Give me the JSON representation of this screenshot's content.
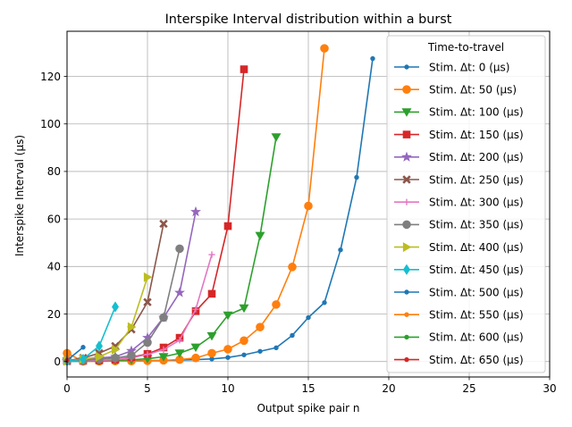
{
  "chart_data": {
    "type": "line",
    "title": "Interspike Interval distribution within a burst",
    "xlabel": "Output spike pair n",
    "ylabel": "Interspike Interval (μs)",
    "xlim": [
      0,
      30
    ],
    "ylim": [
      -6.5,
      139
    ],
    "xticks": [
      0,
      5,
      10,
      15,
      20,
      25,
      30
    ],
    "yticks": [
      0,
      20,
      40,
      60,
      80,
      100,
      120
    ],
    "grid": true,
    "legend": {
      "title": "Time-to-travel",
      "placement": "top-right"
    },
    "series": [
      {
        "name": "Stim. Δt: 0 (μs)",
        "color": "#1f77b4",
        "marker": "dot",
        "x": [
          0,
          1,
          2,
          3,
          4,
          5,
          6,
          7,
          8,
          9,
          10,
          11,
          12,
          13,
          14,
          15,
          16,
          17,
          18,
          19
        ],
        "y": [
          0.1,
          0.1,
          0.2,
          0.2,
          0.3,
          0.4,
          0.5,
          0.6,
          0.8,
          1.1,
          1.7,
          2.8,
          4.3,
          5.8,
          11,
          18.5,
          24.8,
          47,
          77.5,
          127.5
        ]
      },
      {
        "name": "Stim. Δt: 50 (μs)",
        "color": "#ff7f0e",
        "marker": "circle",
        "x": [
          0,
          1,
          2,
          3,
          4,
          5,
          6,
          7,
          8,
          9,
          10,
          11,
          12,
          13,
          14,
          15,
          16
        ],
        "y": [
          3.5,
          0.1,
          0.1,
          0.2,
          0.2,
          0.3,
          0.5,
          0.8,
          1.5,
          3.5,
          5.2,
          8.8,
          14.5,
          24,
          39.8,
          65.5,
          131.8
        ]
      },
      {
        "name": "Stim. Δt: 100 (μs)",
        "color": "#2ca02c",
        "marker": "triangle-down",
        "x": [
          0,
          1,
          2,
          3,
          4,
          5,
          6,
          7,
          8,
          9,
          10,
          11,
          12,
          13
        ],
        "y": [
          0.1,
          0.2,
          0.3,
          0.5,
          0.7,
          1.2,
          2,
          3.5,
          6,
          10.8,
          19.5,
          22.5,
          53,
          94.5
        ]
      },
      {
        "name": "Stim. Δt: 150 (μs)",
        "color": "#d62728",
        "marker": "square",
        "x": [
          0,
          1,
          2,
          3,
          4,
          5,
          6,
          7,
          8,
          9,
          10,
          11
        ],
        "y": [
          0.2,
          0.3,
          0.5,
          0.8,
          1.8,
          3.2,
          5.9,
          10,
          21.2,
          28.5,
          57,
          123
        ]
      },
      {
        "name": "Stim. Δt: 200 (μs)",
        "color": "#9467bd",
        "marker": "star",
        "x": [
          0,
          1,
          2,
          3,
          4,
          5,
          6,
          7,
          8
        ],
        "y": [
          0.2,
          0.5,
          1.5,
          2,
          4.5,
          10,
          18.5,
          29,
          63
        ]
      },
      {
        "name": "Stim. Δt: 250 (μs)",
        "color": "#8c564b",
        "marker": "x",
        "x": [
          0,
          1,
          2,
          3,
          4,
          5,
          6
        ],
        "y": [
          0.3,
          1.5,
          3.5,
          6.5,
          13.5,
          25,
          58
        ]
      },
      {
        "name": "Stim. Δt: 300 (μs)",
        "color": "#e377c2",
        "marker": "plus",
        "x": [
          0,
          1,
          2,
          3,
          4,
          5,
          6,
          7,
          8,
          9
        ],
        "y": [
          0.2,
          0.3,
          0.5,
          0.8,
          1.5,
          3,
          5,
          9,
          22,
          45
        ]
      },
      {
        "name": "Stim. Δt: 350 (μs)",
        "color": "#7f7f7f",
        "marker": "circle",
        "x": [
          0,
          1,
          2,
          3,
          4,
          5,
          6,
          7
        ],
        "y": [
          0.3,
          0.5,
          1,
          1.5,
          2.5,
          8,
          18.5,
          47.5
        ]
      },
      {
        "name": "Stim. Δt: 400 (μs)",
        "color": "#bcbd22",
        "marker": "triangle-right",
        "x": [
          0,
          1,
          2,
          3,
          4,
          5
        ],
        "y": [
          0.3,
          1,
          2,
          5,
          14.5,
          35.5
        ]
      },
      {
        "name": "Stim. Δt: 450 (μs)",
        "color": "#17becf",
        "marker": "diamond",
        "x": [
          0,
          1,
          2,
          3
        ],
        "y": [
          0.2,
          1,
          6.5,
          23
        ]
      },
      {
        "name": "Stim. Δt: 500 (μs)",
        "color": "#1f77b4",
        "marker": "dot",
        "x": [
          0,
          1
        ],
        "y": [
          0.5,
          6
        ]
      },
      {
        "name": "Stim. Δt: 550 (μs)",
        "color": "#ff7f0e",
        "marker": "dot",
        "x": [
          0
        ],
        "y": [
          0.5
        ]
      },
      {
        "name": "Stim. Δt: 600 (μs)",
        "color": "#2ca02c",
        "marker": "dot",
        "x": [
          0
        ],
        "y": [
          0.5
        ]
      },
      {
        "name": "Stim. Δt: 650 (μs)",
        "color": "#d62728",
        "marker": "dot",
        "x": [
          0
        ],
        "y": [
          0.5
        ]
      }
    ]
  }
}
